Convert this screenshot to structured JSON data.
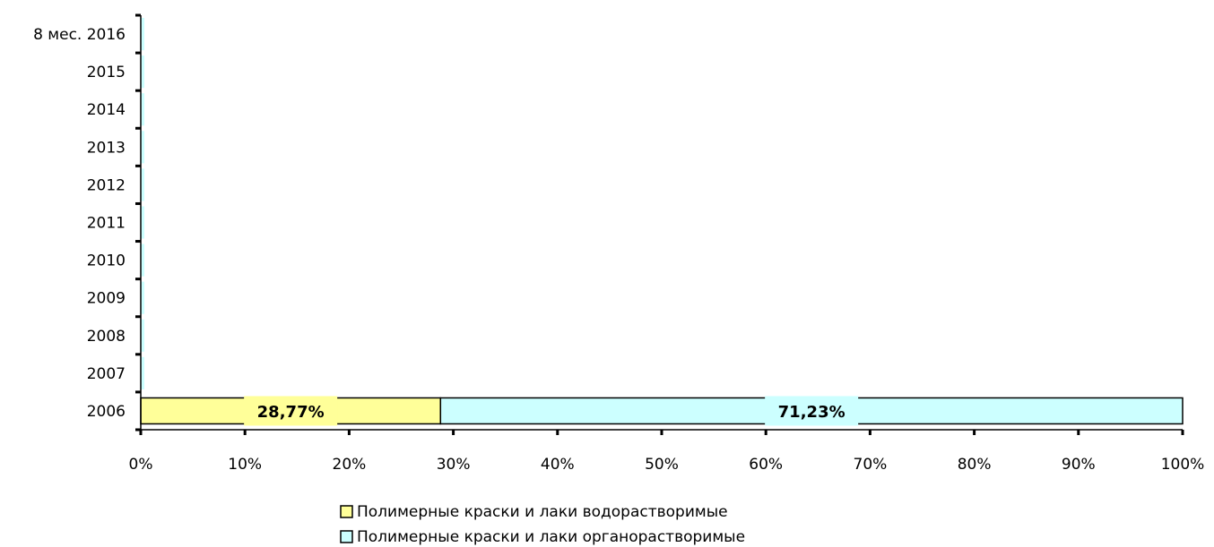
{
  "chart_data": {
    "type": "bar",
    "orientation": "horizontal",
    "stacked": true,
    "percent_stacked": true,
    "categories": [
      "2006",
      "2007",
      "2008",
      "2009",
      "2010",
      "2011",
      "2012",
      "2013",
      "2014",
      "2015",
      "8 мес. 2016"
    ],
    "series": [
      {
        "name": "Полимерные краски и лаки водорастворимые",
        "color": "#FFFF99",
        "values": [
          28.77,
          0,
          0,
          0,
          0,
          0,
          0,
          0,
          0,
          0,
          0
        ],
        "labels": [
          "28,77%",
          "",
          "",
          "",
          "",
          "",
          "",
          "",
          "",
          "",
          ""
        ]
      },
      {
        "name": "Полимерные краски и лаки органорастворимые",
        "color": "#CCFFFF",
        "values": [
          71.23,
          0,
          0,
          0,
          0,
          0,
          0,
          0,
          0,
          0,
          0
        ],
        "labels": [
          "71,23%",
          "",
          "",
          "",
          "",
          "",
          "",
          "",
          "",
          "",
          ""
        ]
      }
    ],
    "xlim": [
      0,
      100
    ],
    "xticks": [
      "0%",
      "10%",
      "20%",
      "30%",
      "40%",
      "50%",
      "60%",
      "70%",
      "80%",
      "90%",
      "100%"
    ],
    "title": "",
    "xlabel": "",
    "ylabel": "",
    "grid": false,
    "legend_position": "bottom"
  }
}
